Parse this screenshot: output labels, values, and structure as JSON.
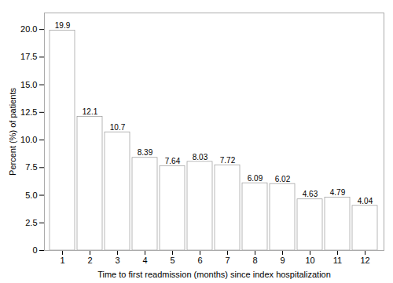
{
  "chart_data": {
    "type": "bar",
    "categories": [
      1,
      2,
      3,
      4,
      5,
      6,
      7,
      8,
      9,
      10,
      11,
      12
    ],
    "values": [
      19.9,
      12.1,
      10.7,
      8.39,
      7.64,
      8.03,
      7.72,
      6.09,
      6.02,
      4.63,
      4.79,
      4.04
    ],
    "color": "#ffffff",
    "xlabel": "Time to first readmission (months) since index hospitalization",
    "ylabel": "Percent (%) of patients",
    "ylim": [
      0,
      21.5
    ],
    "yticks": [
      0,
      2.5,
      {
        "value": 5,
        "label": "5.0"
      },
      7.5,
      {
        "value": 10,
        "label": "10.0"
      },
      12.5,
      {
        "value": 15,
        "label": "15.0"
      },
      17.5,
      {
        "value": 20,
        "label": "20.0"
      }
    ],
    "data_labels": true,
    "grid": false
  }
}
